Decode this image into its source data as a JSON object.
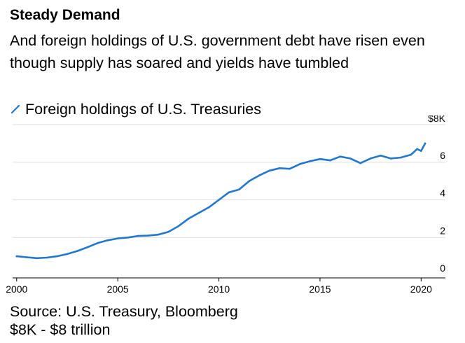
{
  "title": "Steady Demand",
  "subtitle": "And foreign holdings of U.S. government debt have risen even though supply has soared and yields have tumbled",
  "source": "Source: U.S. Treasury, Bloomberg",
  "note": "$8K - $8 trillion",
  "colors": {
    "series": "#1f78d1",
    "grid": "#dddddd",
    "axis": "#000000"
  },
  "chart_data": {
    "type": "line",
    "title": "Steady Demand",
    "subtitle": "And foreign holdings of U.S. government debt have risen even though supply has soared and yields have tumbled",
    "xlabel": "",
    "ylabel": "",
    "y_unit_label": "$8K",
    "xlim": [
      1999.8,
      2021.2
    ],
    "ylim": [
      0,
      8
    ],
    "x_ticks": [
      2000,
      2005,
      2010,
      2015,
      2020
    ],
    "x_tick_labels": [
      "2000",
      "2005",
      "2010",
      "2015",
      "2020"
    ],
    "y_ticks": [
      0,
      2,
      4,
      6
    ],
    "y_tick_labels": [
      "0",
      "2",
      "4",
      "6"
    ],
    "grid": true,
    "legend": "top-left",
    "series": [
      {
        "name": "Foreign holdings of U.S. Treasuries",
        "color": "#1f78d1",
        "x": [
          2000,
          2000.5,
          2001,
          2001.5,
          2002,
          2002.5,
          2003,
          2003.5,
          2004,
          2004.5,
          2005,
          2005.5,
          2006,
          2006.5,
          2007,
          2007.5,
          2008,
          2008.5,
          2009,
          2009.5,
          2010,
          2010.5,
          2011,
          2011.5,
          2012,
          2012.5,
          2013,
          2013.5,
          2014,
          2014.5,
          2015,
          2015.5,
          2016,
          2016.5,
          2017,
          2017.5,
          2018,
          2018.5,
          2019,
          2019.5,
          2019.8,
          2020,
          2020.2
        ],
        "y": [
          1.0,
          0.95,
          0.9,
          0.93,
          1.0,
          1.12,
          1.28,
          1.48,
          1.7,
          1.85,
          1.95,
          2.0,
          2.08,
          2.1,
          2.15,
          2.3,
          2.6,
          3.0,
          3.3,
          3.6,
          4.0,
          4.4,
          4.55,
          5.0,
          5.3,
          5.55,
          5.68,
          5.65,
          5.9,
          6.05,
          6.17,
          6.1,
          6.3,
          6.2,
          5.95,
          6.2,
          6.35,
          6.2,
          6.25,
          6.4,
          6.7,
          6.6,
          7.0
        ]
      }
    ]
  }
}
